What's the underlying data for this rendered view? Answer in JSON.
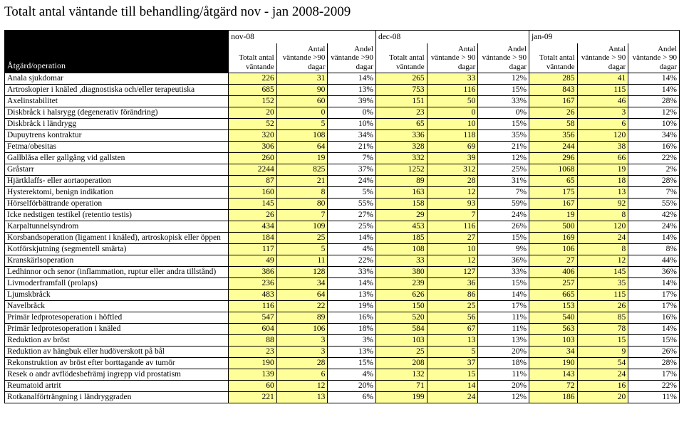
{
  "title": "Totalt antal väntande till behandling/åtgärd nov - jan  2008-2009",
  "periods": [
    "nov-08",
    "dec-08",
    "jan-09"
  ],
  "col0_label": "Åtgärd/operation",
  "group_headers": [
    "Totalt antal väntande",
    "Antal väntande >90 dagar",
    "Andel väntande >90 dagar",
    "Totalt antal väntande",
    "Antal väntande > 90 dagar",
    "Andel väntande > 90 dagar",
    "Totalt antal väntande",
    "Antal väntande > 90 dagar",
    "Andel väntande > 90 dagar"
  ],
  "rows": [
    {
      "name": "Anala sjukdomar",
      "v": [
        226,
        31,
        "14%",
        265,
        33,
        "12%",
        285,
        41,
        "14%"
      ]
    },
    {
      "name": "Artroskopier i knäled ,diagnostiska och/eller terapeutiska",
      "v": [
        685,
        90,
        "13%",
        753,
        116,
        "15%",
        843,
        115,
        "14%"
      ]
    },
    {
      "name": "Axelinstabilitet",
      "v": [
        152,
        60,
        "39%",
        151,
        50,
        "33%",
        167,
        46,
        "28%"
      ]
    },
    {
      "name": "Diskbråck i halsrygg (degenerativ förändring)",
      "v": [
        20,
        0,
        "0%",
        23,
        0,
        "0%",
        26,
        3,
        "12%"
      ]
    },
    {
      "name": "Diskbråck i ländrygg",
      "v": [
        52,
        5,
        "10%",
        65,
        10,
        "15%",
        58,
        6,
        "10%"
      ]
    },
    {
      "name": "Dupuytrens kontraktur",
      "v": [
        320,
        108,
        "34%",
        336,
        118,
        "35%",
        356,
        120,
        "34%"
      ]
    },
    {
      "name": "Fetma/obesitas",
      "v": [
        306,
        64,
        "21%",
        328,
        69,
        "21%",
        244,
        38,
        "16%"
      ]
    },
    {
      "name": "Gallblåsa eller gallgång vid gallsten",
      "v": [
        260,
        19,
        "7%",
        332,
        39,
        "12%",
        296,
        66,
        "22%"
      ]
    },
    {
      "name": "Gråstarr",
      "v": [
        2244,
        825,
        "37%",
        1252,
        312,
        "25%",
        1068,
        19,
        "2%"
      ]
    },
    {
      "name": "Hjärtklaffs- eller aortaoperation",
      "v": [
        87,
        21,
        "24%",
        89,
        28,
        "31%",
        65,
        18,
        "28%"
      ]
    },
    {
      "name": "Hysterektomi, benign indikation",
      "v": [
        160,
        8,
        "5%",
        163,
        12,
        "7%",
        175,
        13,
        "7%"
      ]
    },
    {
      "name": "Hörselförbättrande operation",
      "v": [
        145,
        80,
        "55%",
        158,
        93,
        "59%",
        167,
        92,
        "55%"
      ]
    },
    {
      "name": "Icke nedstigen testikel (retentio testis)",
      "v": [
        26,
        7,
        "27%",
        29,
        7,
        "24%",
        19,
        8,
        "42%"
      ]
    },
    {
      "name": "Karpaltunnelsyndrom",
      "v": [
        434,
        109,
        "25%",
        453,
        116,
        "26%",
        500,
        120,
        "24%"
      ]
    },
    {
      "name": "Korsbandsoperation (ligament i knäled), artroskopisk eller öppen",
      "v": [
        184,
        25,
        "14%",
        185,
        27,
        "15%",
        169,
        24,
        "14%"
      ]
    },
    {
      "name": "Kotförskjutning (segmentell smärta)",
      "v": [
        117,
        5,
        "4%",
        108,
        10,
        "9%",
        106,
        8,
        "8%"
      ]
    },
    {
      "name": "Kranskärlsoperation",
      "v": [
        49,
        11,
        "22%",
        33,
        12,
        "36%",
        27,
        12,
        "44%"
      ]
    },
    {
      "name": "Ledhinnor och senor (inflammation, ruptur eller andra tillstånd)",
      "v": [
        386,
        128,
        "33%",
        380,
        127,
        "33%",
        406,
        145,
        "36%"
      ]
    },
    {
      "name": "Livmoderframfall (prolaps)",
      "v": [
        236,
        34,
        "14%",
        239,
        36,
        "15%",
        257,
        35,
        "14%"
      ]
    },
    {
      "name": "Ljumskbråck",
      "v": [
        483,
        64,
        "13%",
        626,
        86,
        "14%",
        665,
        115,
        "17%"
      ]
    },
    {
      "name": "Navelbråck",
      "v": [
        116,
        22,
        "19%",
        150,
        25,
        "17%",
        153,
        26,
        "17%"
      ]
    },
    {
      "name": "Primär ledprotesoperation i höftled",
      "v": [
        547,
        89,
        "16%",
        520,
        56,
        "11%",
        540,
        85,
        "16%"
      ]
    },
    {
      "name": "Primär ledprotesoperation i knäled",
      "v": [
        604,
        106,
        "18%",
        584,
        67,
        "11%",
        563,
        78,
        "14%"
      ]
    },
    {
      "name": "Reduktion av bröst",
      "v": [
        88,
        3,
        "3%",
        103,
        13,
        "13%",
        103,
        15,
        "15%"
      ]
    },
    {
      "name": "Reduktion av hängbuk eller hudöverskott på bål",
      "v": [
        23,
        3,
        "13%",
        25,
        5,
        "20%",
        34,
        9,
        "26%"
      ]
    },
    {
      "name": "Rekonstruktion av bröst efter borttagande av tumör",
      "v": [
        190,
        28,
        "15%",
        208,
        37,
        "18%",
        190,
        54,
        "28%"
      ]
    },
    {
      "name": "Resek o andr avflödesbefrämj ingrepp vid prostatism",
      "v": [
        139,
        6,
        "4%",
        132,
        15,
        "11%",
        143,
        24,
        "17%"
      ]
    },
    {
      "name": "Reumatoid artrit",
      "v": [
        60,
        12,
        "20%",
        71,
        14,
        "20%",
        72,
        16,
        "22%"
      ]
    },
    {
      "name": "Rotkanalförträngning i ländryggraden",
      "v": [
        221,
        13,
        "6%",
        199,
        24,
        "12%",
        186,
        20,
        "11%"
      ]
    }
  ],
  "shade_color": "#ffff99"
}
